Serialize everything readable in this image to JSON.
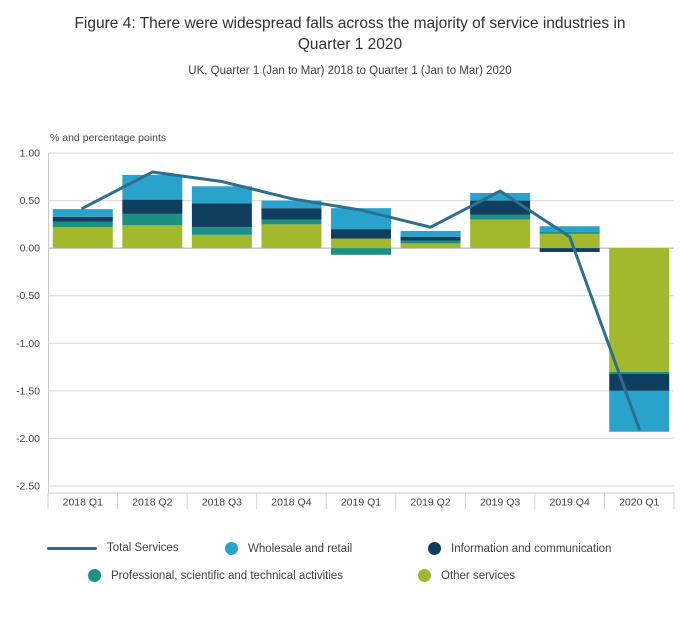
{
  "header": {
    "title": "Figure 4: There were widespread falls across the majority of service industries in Quarter 1 2020",
    "subtitle": "UK, Quarter 1 (Jan to Mar) 2018 to Quarter 1 (Jan to Mar) 2020"
  },
  "chart_data": {
    "type": "bar",
    "subtype": "stacked-bars-with-total-line",
    "title": "Figure 4: There were widespread falls across the majority of service industries in Quarter 1 2020",
    "subtitle": "UK, Quarter 1 (Jan to Mar) 2018 to Quarter 1 (Jan to Mar) 2020",
    "axis_label": "% and percentage points",
    "categories": [
      "2018 Q1",
      "2018 Q2",
      "2018 Q3",
      "2018 Q4",
      "2019 Q1",
      "2019 Q2",
      "2019 Q3",
      "2019 Q4",
      "2020 Q1"
    ],
    "bar_series": [
      {
        "name": "Other services",
        "color": "#a3b82c",
        "values": [
          0.22,
          0.24,
          0.14,
          0.25,
          0.1,
          0.05,
          0.3,
          0.15,
          -1.3
        ]
      },
      {
        "name": "Professional, scientific and technical activities",
        "color": "#1d9181",
        "values": [
          0.06,
          0.12,
          0.08,
          0.05,
          -0.07,
          0.03,
          0.05,
          0.02,
          -0.02
        ]
      },
      {
        "name": "Information and communication",
        "color": "#0f3e5f",
        "values": [
          0.05,
          0.15,
          0.25,
          0.12,
          0.1,
          0.04,
          0.15,
          -0.04,
          -0.18
        ]
      },
      {
        "name": "Wholesale and retail",
        "color": "#29a3cc",
        "values": [
          0.08,
          0.26,
          0.18,
          0.08,
          0.22,
          0.06,
          0.08,
          0.06,
          -0.43
        ]
      }
    ],
    "line_series": {
      "name": "Total Services",
      "color": "#2e6e8e",
      "values": [
        0.42,
        0.8,
        0.7,
        0.52,
        0.4,
        0.22,
        0.6,
        0.12,
        -1.9
      ]
    },
    "ylim": [
      -2.5,
      1.0
    ],
    "ytick_step": 0.5,
    "yticks": [
      "1.00",
      "0.50",
      "0.00",
      "-0.50",
      "-1.00",
      "-1.50",
      "-2.00",
      "-2.50"
    ],
    "grid": true,
    "legend_position": "bottom",
    "legend_order": [
      "Total Services",
      "Wholesale and retail",
      "Information and communication",
      "Professional, scientific and technical activities",
      "Other services"
    ]
  }
}
